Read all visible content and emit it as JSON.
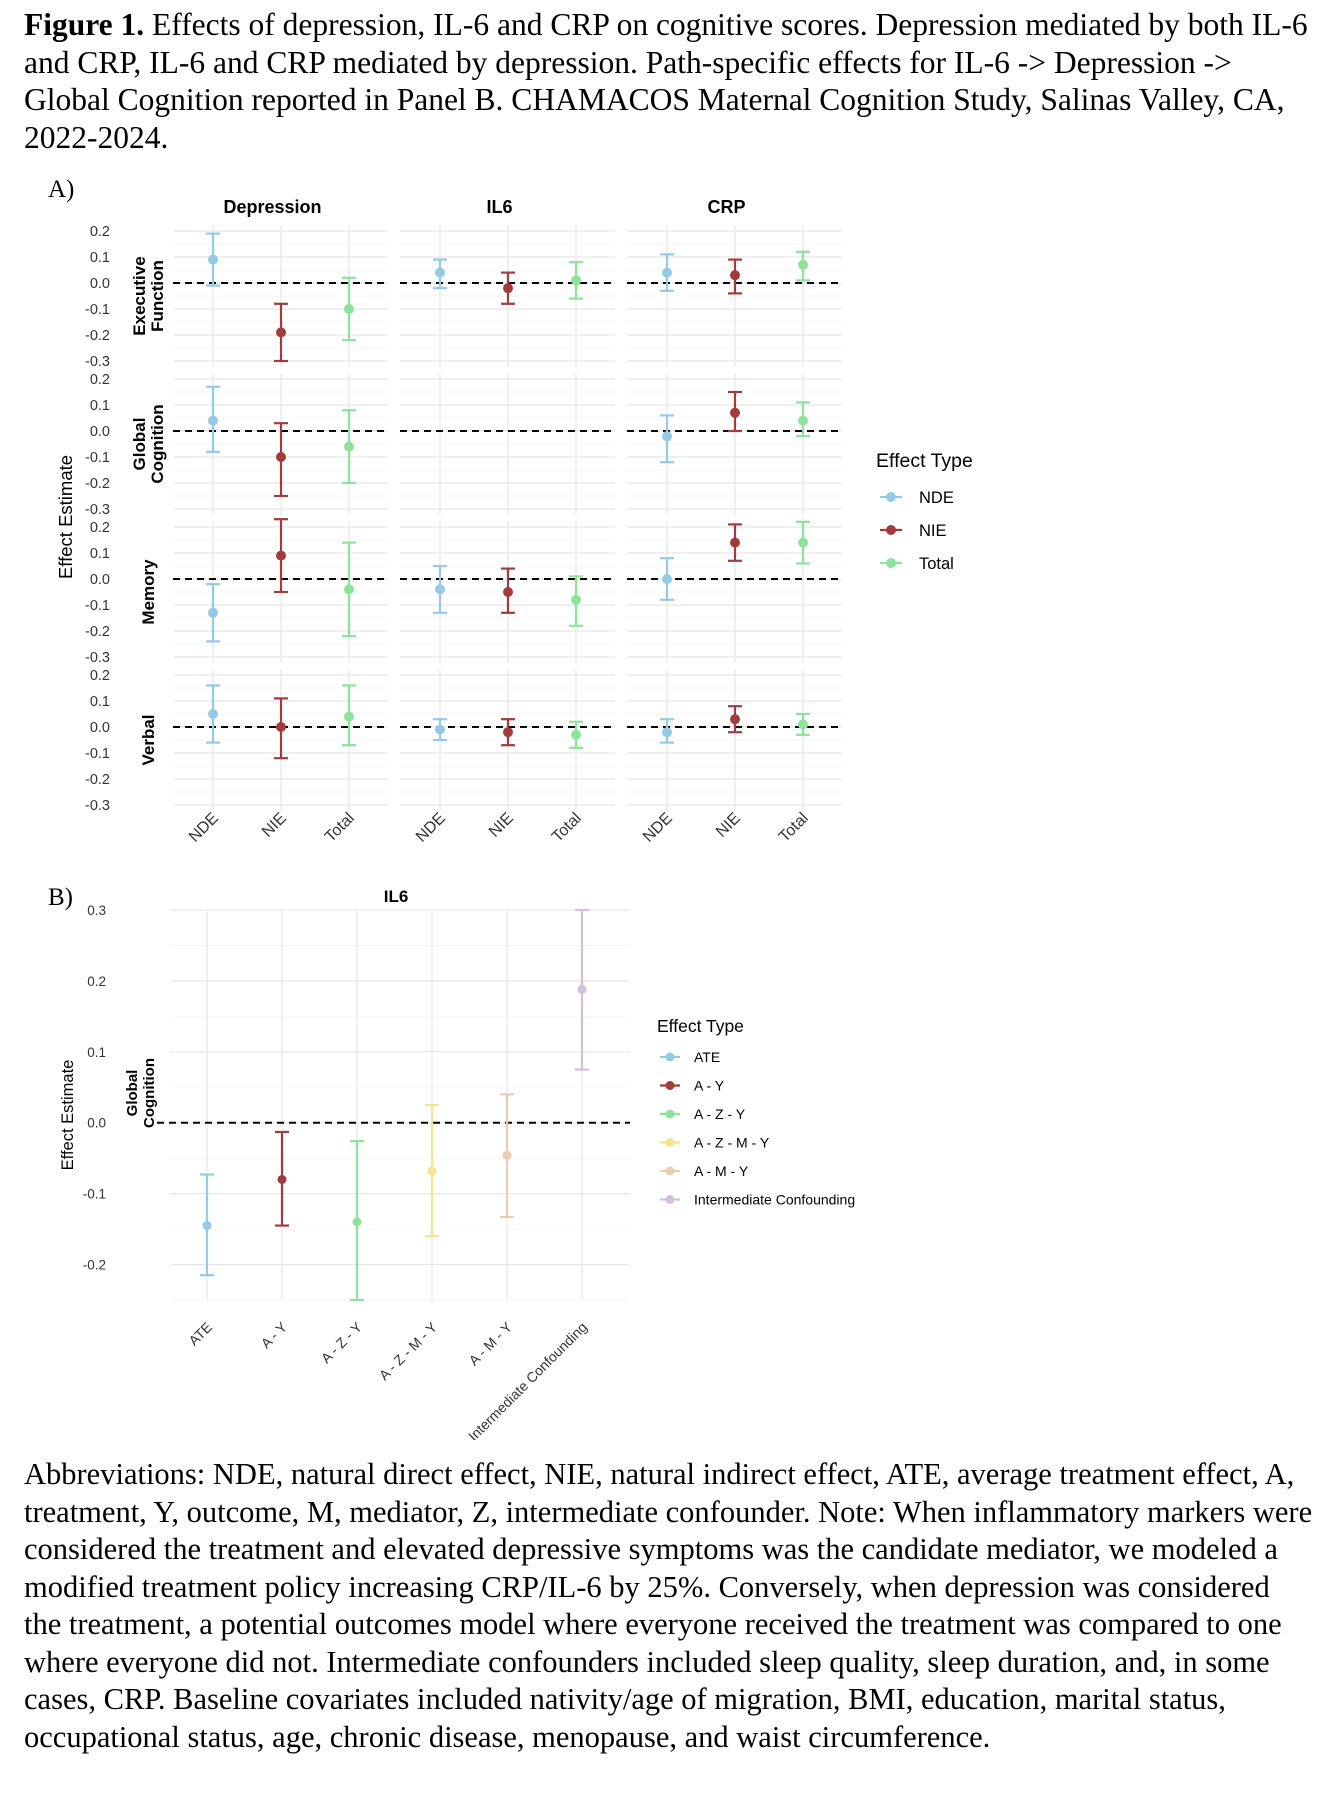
{
  "caption": {
    "label": "Figure 1.",
    "text": " Effects of depression, IL-6 and CRP on cognitive scores. Depression mediated by both IL-6 and CRP, IL-6 and CRP mediated by depression. Path-specific effects for IL-6 -> Depression -> Global Cognition reported in Panel B. CHAMACOS Maternal Cognition Study, Salinas Valley, CA, 2022-2024."
  },
  "panelA_label": "A)",
  "panelB_label": "B)",
  "footer": "Abbreviations: NDE, natural direct effect, NIE, natural indirect effect, ATE, average treatment effect, A, treatment, Y, outcome, M, mediator, Z, intermediate confounder. Note: When inflammatory markers were considered the treatment and elevated depressive symptoms was the candidate mediator, we modeled a modified treatment policy increasing CRP/IL-6 by 25%. Conversely, when depression was considered the treatment, a potential outcomes model where everyone received the treatment was compared to one where everyone did not. Intermediate confounders included sleep quality, sleep duration, and, in some cases, CRP. Baseline covariates included nativity/age of migration, BMI, education, marital status, occupational status, age, chronic disease, menopause, and waist circumference.",
  "colors": {
    "NDE": "#93CBE4",
    "NIE": "#A23B3B",
    "Total": "#8DE39B",
    "ATE": "#93CBE4",
    "A - Y": "#A23B3B",
    "A - Z - Y": "#8DE39B",
    "A - Z - M - Y": "#F2E58E",
    "A - M - Y": "#E8CDB0",
    "Intermediate Confounding": "#D2BFDB"
  },
  "chart_data": [
    {
      "type": "scatter",
      "subtype": "point-range facet grid",
      "ylabel": "Effect Estimate",
      "ylim": [
        -0.3,
        0.2
      ],
      "yticks": [
        "0.2",
        "0.1",
        "0.0",
        "-0.1",
        "-0.2",
        "-0.3"
      ],
      "reference_line": 0,
      "columns": [
        "Depression",
        "IL6",
        "CRP"
      ],
      "rows": [
        "Executive\nFunction",
        "Global\nCognition",
        "Memory",
        "Verbal"
      ],
      "categories": [
        "NDE",
        "NIE",
        "Total"
      ],
      "legend": {
        "title": "Effect Type",
        "items": [
          "NDE",
          "NIE",
          "Total"
        ],
        "position": "right"
      },
      "grid": true,
      "panels": [
        {
          "row": "Executive\nFunction",
          "col": "Depression",
          "points": [
            {
              "x": "NDE",
              "y": 0.09,
              "lo": -0.01,
              "hi": 0.19
            },
            {
              "x": "NIE",
              "y": -0.19,
              "lo": -0.3,
              "hi": -0.08
            },
            {
              "x": "Total",
              "y": -0.1,
              "lo": -0.22,
              "hi": 0.02
            }
          ]
        },
        {
          "row": "Executive\nFunction",
          "col": "IL6",
          "points": [
            {
              "x": "NDE",
              "y": 0.04,
              "lo": -0.02,
              "hi": 0.09
            },
            {
              "x": "NIE",
              "y": -0.02,
              "lo": -0.08,
              "hi": 0.04
            },
            {
              "x": "Total",
              "y": 0.01,
              "lo": -0.06,
              "hi": 0.08
            }
          ]
        },
        {
          "row": "Executive\nFunction",
          "col": "CRP",
          "points": [
            {
              "x": "NDE",
              "y": 0.04,
              "lo": -0.03,
              "hi": 0.11
            },
            {
              "x": "NIE",
              "y": 0.03,
              "lo": -0.04,
              "hi": 0.09
            },
            {
              "x": "Total",
              "y": 0.07,
              "lo": 0.01,
              "hi": 0.12
            }
          ]
        },
        {
          "row": "Global\nCognition",
          "col": "Depression",
          "points": [
            {
              "x": "NDE",
              "y": 0.04,
              "lo": -0.08,
              "hi": 0.17
            },
            {
              "x": "NIE",
              "y": -0.1,
              "lo": -0.25,
              "hi": 0.03
            },
            {
              "x": "Total",
              "y": -0.06,
              "lo": -0.2,
              "hi": 0.08
            }
          ]
        },
        {
          "row": "Global\nCognition",
          "col": "IL6",
          "points": []
        },
        {
          "row": "Global\nCognition",
          "col": "CRP",
          "points": [
            {
              "x": "NDE",
              "y": -0.02,
              "lo": -0.12,
              "hi": 0.06
            },
            {
              "x": "NIE",
              "y": 0.07,
              "lo": 0.0,
              "hi": 0.15
            },
            {
              "x": "Total",
              "y": 0.04,
              "lo": -0.02,
              "hi": 0.11
            }
          ]
        },
        {
          "row": "Memory",
          "col": "Depression",
          "points": [
            {
              "x": "NDE",
              "y": -0.13,
              "lo": -0.24,
              "hi": -0.02
            },
            {
              "x": "NIE",
              "y": 0.09,
              "lo": -0.05,
              "hi": 0.23
            },
            {
              "x": "Total",
              "y": -0.04,
              "lo": -0.22,
              "hi": 0.14
            }
          ]
        },
        {
          "row": "Memory",
          "col": "IL6",
          "points": [
            {
              "x": "NDE",
              "y": -0.04,
              "lo": -0.13,
              "hi": 0.05
            },
            {
              "x": "NIE",
              "y": -0.05,
              "lo": -0.13,
              "hi": 0.04
            },
            {
              "x": "Total",
              "y": -0.08,
              "lo": -0.18,
              "hi": 0.01
            }
          ]
        },
        {
          "row": "Memory",
          "col": "CRP",
          "points": [
            {
              "x": "NDE",
              "y": 0.0,
              "lo": -0.08,
              "hi": 0.08
            },
            {
              "x": "NIE",
              "y": 0.14,
              "lo": 0.07,
              "hi": 0.21
            },
            {
              "x": "Total",
              "y": 0.14,
              "lo": 0.06,
              "hi": 0.22
            }
          ]
        },
        {
          "row": "Verbal",
          "col": "Depression",
          "points": [
            {
              "x": "NDE",
              "y": 0.05,
              "lo": -0.06,
              "hi": 0.16
            },
            {
              "x": "NIE",
              "y": 0.0,
              "lo": -0.12,
              "hi": 0.11
            },
            {
              "x": "Total",
              "y": 0.04,
              "lo": -0.07,
              "hi": 0.16
            }
          ]
        },
        {
          "row": "Verbal",
          "col": "IL6",
          "points": [
            {
              "x": "NDE",
              "y": -0.01,
              "lo": -0.05,
              "hi": 0.03
            },
            {
              "x": "NIE",
              "y": -0.02,
              "lo": -0.07,
              "hi": 0.03
            },
            {
              "x": "Total",
              "y": -0.03,
              "lo": -0.08,
              "hi": 0.02
            }
          ]
        },
        {
          "row": "Verbal",
          "col": "CRP",
          "points": [
            {
              "x": "NDE",
              "y": -0.02,
              "lo": -0.06,
              "hi": 0.03
            },
            {
              "x": "NIE",
              "y": 0.03,
              "lo": -0.02,
              "hi": 0.08
            },
            {
              "x": "Total",
              "y": 0.01,
              "lo": -0.03,
              "hi": 0.05
            }
          ]
        }
      ]
    },
    {
      "type": "scatter",
      "subtype": "point-range",
      "title": "IL6",
      "ylabel": "Effect Estimate",
      "row_label": "Global\nCognition",
      "ylim": [
        -0.25,
        0.3
      ],
      "yticks": [
        "0.3",
        "0.2",
        "0.1",
        "0.0",
        "-0.1",
        "-0.2"
      ],
      "reference_line": 0,
      "categories": [
        "ATE",
        "A - Y",
        "A - Z - Y",
        "A - Z - M - Y",
        "A - M - Y",
        "Intermediate Confounding"
      ],
      "points": [
        {
          "x": "ATE",
          "y": -0.145,
          "lo": -0.215,
          "hi": -0.073
        },
        {
          "x": "A - Y",
          "y": -0.08,
          "lo": -0.145,
          "hi": -0.013
        },
        {
          "x": "A - Z - Y",
          "y": -0.14,
          "lo": -0.25,
          "hi": -0.026
        },
        {
          "x": "A - Z - M - Y",
          "y": -0.068,
          "lo": -0.16,
          "hi": 0.025
        },
        {
          "x": "A - M - Y",
          "y": -0.046,
          "lo": -0.133,
          "hi": 0.04
        },
        {
          "x": "Intermediate Confounding",
          "y": 0.188,
          "lo": 0.075,
          "hi": 0.3
        }
      ],
      "legend": {
        "title": "Effect Type",
        "items": [
          "ATE",
          "A - Y",
          "A - Z - Y",
          "A - Z - M - Y",
          "A - M - Y",
          "Intermediate Confounding"
        ],
        "position": "right"
      },
      "grid": true
    }
  ]
}
